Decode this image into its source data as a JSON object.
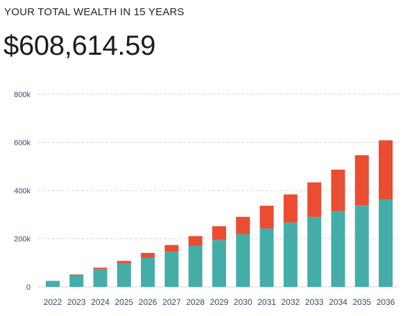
{
  "header": {
    "title": "YOUR TOTAL WEALTH IN 15 YEARS",
    "total_value": "$608,614.59"
  },
  "colors": {
    "principal": "#45ada8",
    "growth": "#eb4d32",
    "grid": "#d6d6d6",
    "axis_text": "#3d4966"
  },
  "chart_data": {
    "type": "bar",
    "stacked": true,
    "categories": [
      "2022",
      "2023",
      "2024",
      "2025",
      "2026",
      "2027",
      "2028",
      "2029",
      "2030",
      "2031",
      "2032",
      "2033",
      "2034",
      "2035",
      "2036"
    ],
    "series": [
      {
        "color": "#45ada8",
        "values": [
          25000,
          50000,
          74000,
          98000,
          121000,
          146000,
          170000,
          195000,
          219000,
          243000,
          267000,
          291000,
          315000,
          339000,
          364000
        ]
      },
      {
        "color": "#eb4d32",
        "values": [
          0,
          2000,
          6000,
          10000,
          20000,
          28000,
          41000,
          57000,
          72000,
          94000,
          117000,
          143000,
          172000,
          208000,
          244615
        ]
      }
    ],
    "ylim": [
      0,
      800000
    ],
    "yticks": [
      0,
      200000,
      400000,
      600000,
      800000
    ],
    "ytick_labels": [
      "0",
      "200k",
      "400k",
      "600k",
      "800k"
    ],
    "grid": true,
    "legend": "none"
  }
}
